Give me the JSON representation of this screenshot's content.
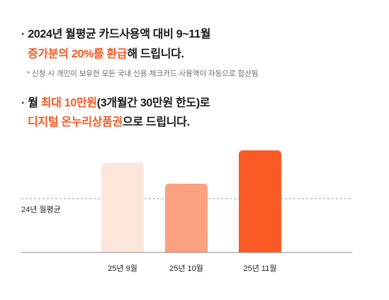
{
  "text": {
    "bullet": "·",
    "line1": "2024년 월평균 카드사용액 대비 9~11월",
    "line2_highlight": "증가분의 20%를 환급",
    "line2_rest": "해 드립니다.",
    "note": "* 신청 시 개인이 보유한 모든 국내 신용·체크카드 사용액이 자동으로 합산됨",
    "line3_a": "월 ",
    "line3_highlight": "최대 10만원",
    "line3_b": "(3개월간 30만원 한도)로",
    "line4_highlight": "디지털 온누리상품권",
    "line4_rest": "으로 드립니다."
  },
  "colors": {
    "accent": "#f15a24",
    "bars": [
      "#fde6dc",
      "#fba17f",
      "#fb5a24"
    ],
    "axis": "#8a8a8a",
    "reference": "#9a9a9a"
  },
  "chart_data": {
    "type": "bar",
    "categories": [
      "25년 9월",
      "25년 10월",
      "25년 11월"
    ],
    "values": [
      127,
      97,
      144
    ],
    "reference": {
      "label": "24년 월평균",
      "value": 76
    },
    "ylim": [
      0,
      160
    ],
    "grid": false,
    "legend": "none"
  }
}
